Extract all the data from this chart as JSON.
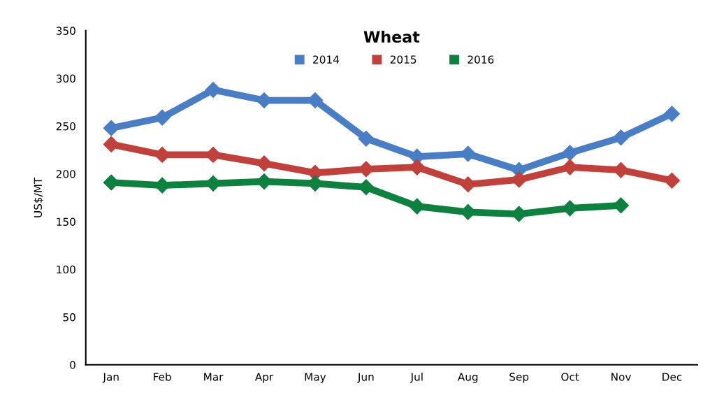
{
  "chart_data": {
    "type": "line",
    "title": "Wheat",
    "ylabel": "US$/MT",
    "categories": [
      "Jan",
      "Feb",
      "Mar",
      "Apr",
      "May",
      "Jun",
      "Jul",
      "Aug",
      "Sep",
      "Oct",
      "Nov",
      "Dec"
    ],
    "series": [
      {
        "name": "2014",
        "color": "#4a7ec4",
        "values": [
          248,
          259,
          288,
          277,
          277,
          237,
          218,
          221,
          204,
          222,
          238,
          263
        ]
      },
      {
        "name": "2015",
        "color": "#c0413b",
        "values": [
          231,
          220,
          220,
          211,
          201,
          205,
          207,
          189,
          194,
          207,
          204,
          193
        ]
      },
      {
        "name": "2016",
        "color": "#0e8040",
        "values": [
          191,
          188,
          190,
          192,
          190,
          186,
          166,
          160,
          158,
          164,
          167,
          null
        ]
      }
    ],
    "ylim": [
      0,
      350
    ],
    "yticks": [
      0,
      50,
      100,
      150,
      200,
      250,
      300,
      350
    ],
    "grid": false,
    "legend": "top",
    "marker": "diamond",
    "line_style": "solid"
  }
}
